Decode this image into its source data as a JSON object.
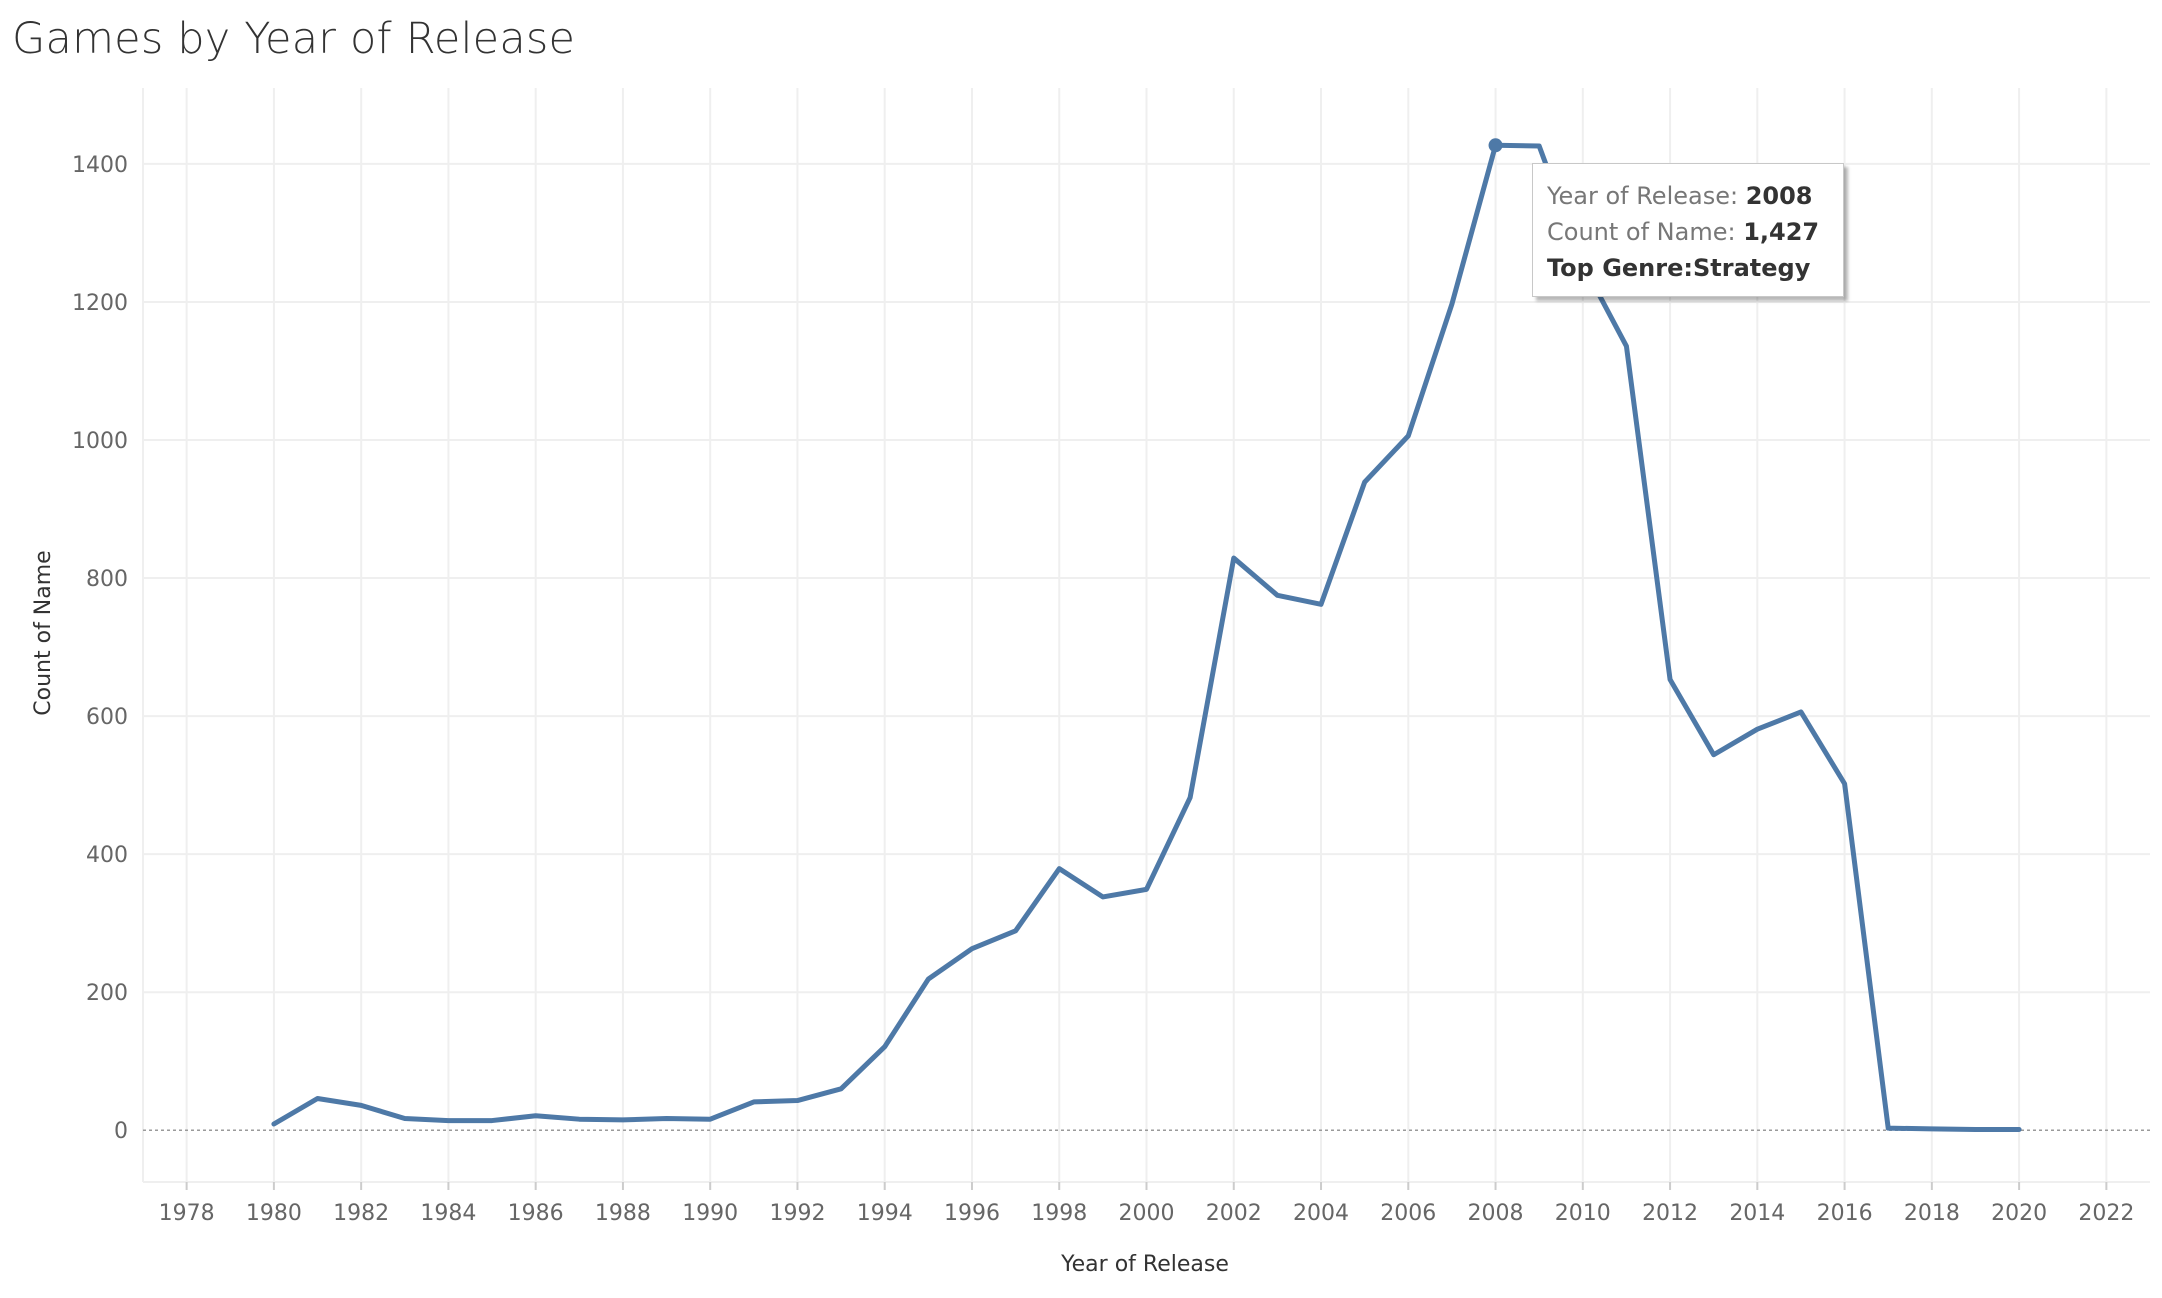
{
  "title": "Games by Year of Release",
  "tooltip": {
    "year_label": "Year of Release:",
    "year_value": "2008",
    "count_label": "Count of Name:",
    "count_value": "1,427",
    "genre_text": "Top Genre:Strategy"
  },
  "colors": {
    "line": "#4e79a7",
    "grid": "#efefef",
    "zero_line": "#9a9a9a"
  },
  "chart_data": {
    "type": "line",
    "title": "Games by Year of Release",
    "xlabel": "Year of Release",
    "ylabel": "Count of Name",
    "xlim": [
      1977,
      2023
    ],
    "ylim": [
      -75,
      1510
    ],
    "x_ticks": [
      1978,
      1980,
      1982,
      1984,
      1986,
      1988,
      1990,
      1992,
      1994,
      1996,
      1998,
      2000,
      2002,
      2004,
      2006,
      2008,
      2010,
      2012,
      2014,
      2016,
      2018,
      2020,
      2022
    ],
    "y_ticks": [
      0,
      200,
      400,
      600,
      800,
      1000,
      1200,
      1400
    ],
    "grid": true,
    "highlight": {
      "x": 2008,
      "y": 1427
    },
    "series": [
      {
        "x": [
          1980,
          1981,
          1982,
          1983,
          1984,
          1985,
          1986,
          1987,
          1988,
          1989,
          1990,
          1991,
          1992,
          1993,
          1994,
          1995,
          1996,
          1997,
          1998,
          1999,
          2000,
          2001,
          2002,
          2003,
          2004,
          2005,
          2006,
          2007,
          2008,
          2009,
          2010,
          2011,
          2012,
          2013,
          2014,
          2015,
          2016,
          2017,
          2018,
          2019,
          2020
        ],
        "values": [
          9,
          46,
          36,
          17,
          14,
          14,
          21,
          16,
          15,
          17,
          16,
          41,
          43,
          60,
          121,
          219,
          263,
          289,
          379,
          338,
          349,
          482,
          829,
          775,
          762,
          939,
          1006,
          1197,
          1427,
          1426,
          1255,
          1136,
          653,
          544,
          581,
          606,
          502,
          3,
          2,
          1,
          1
        ]
      }
    ]
  }
}
